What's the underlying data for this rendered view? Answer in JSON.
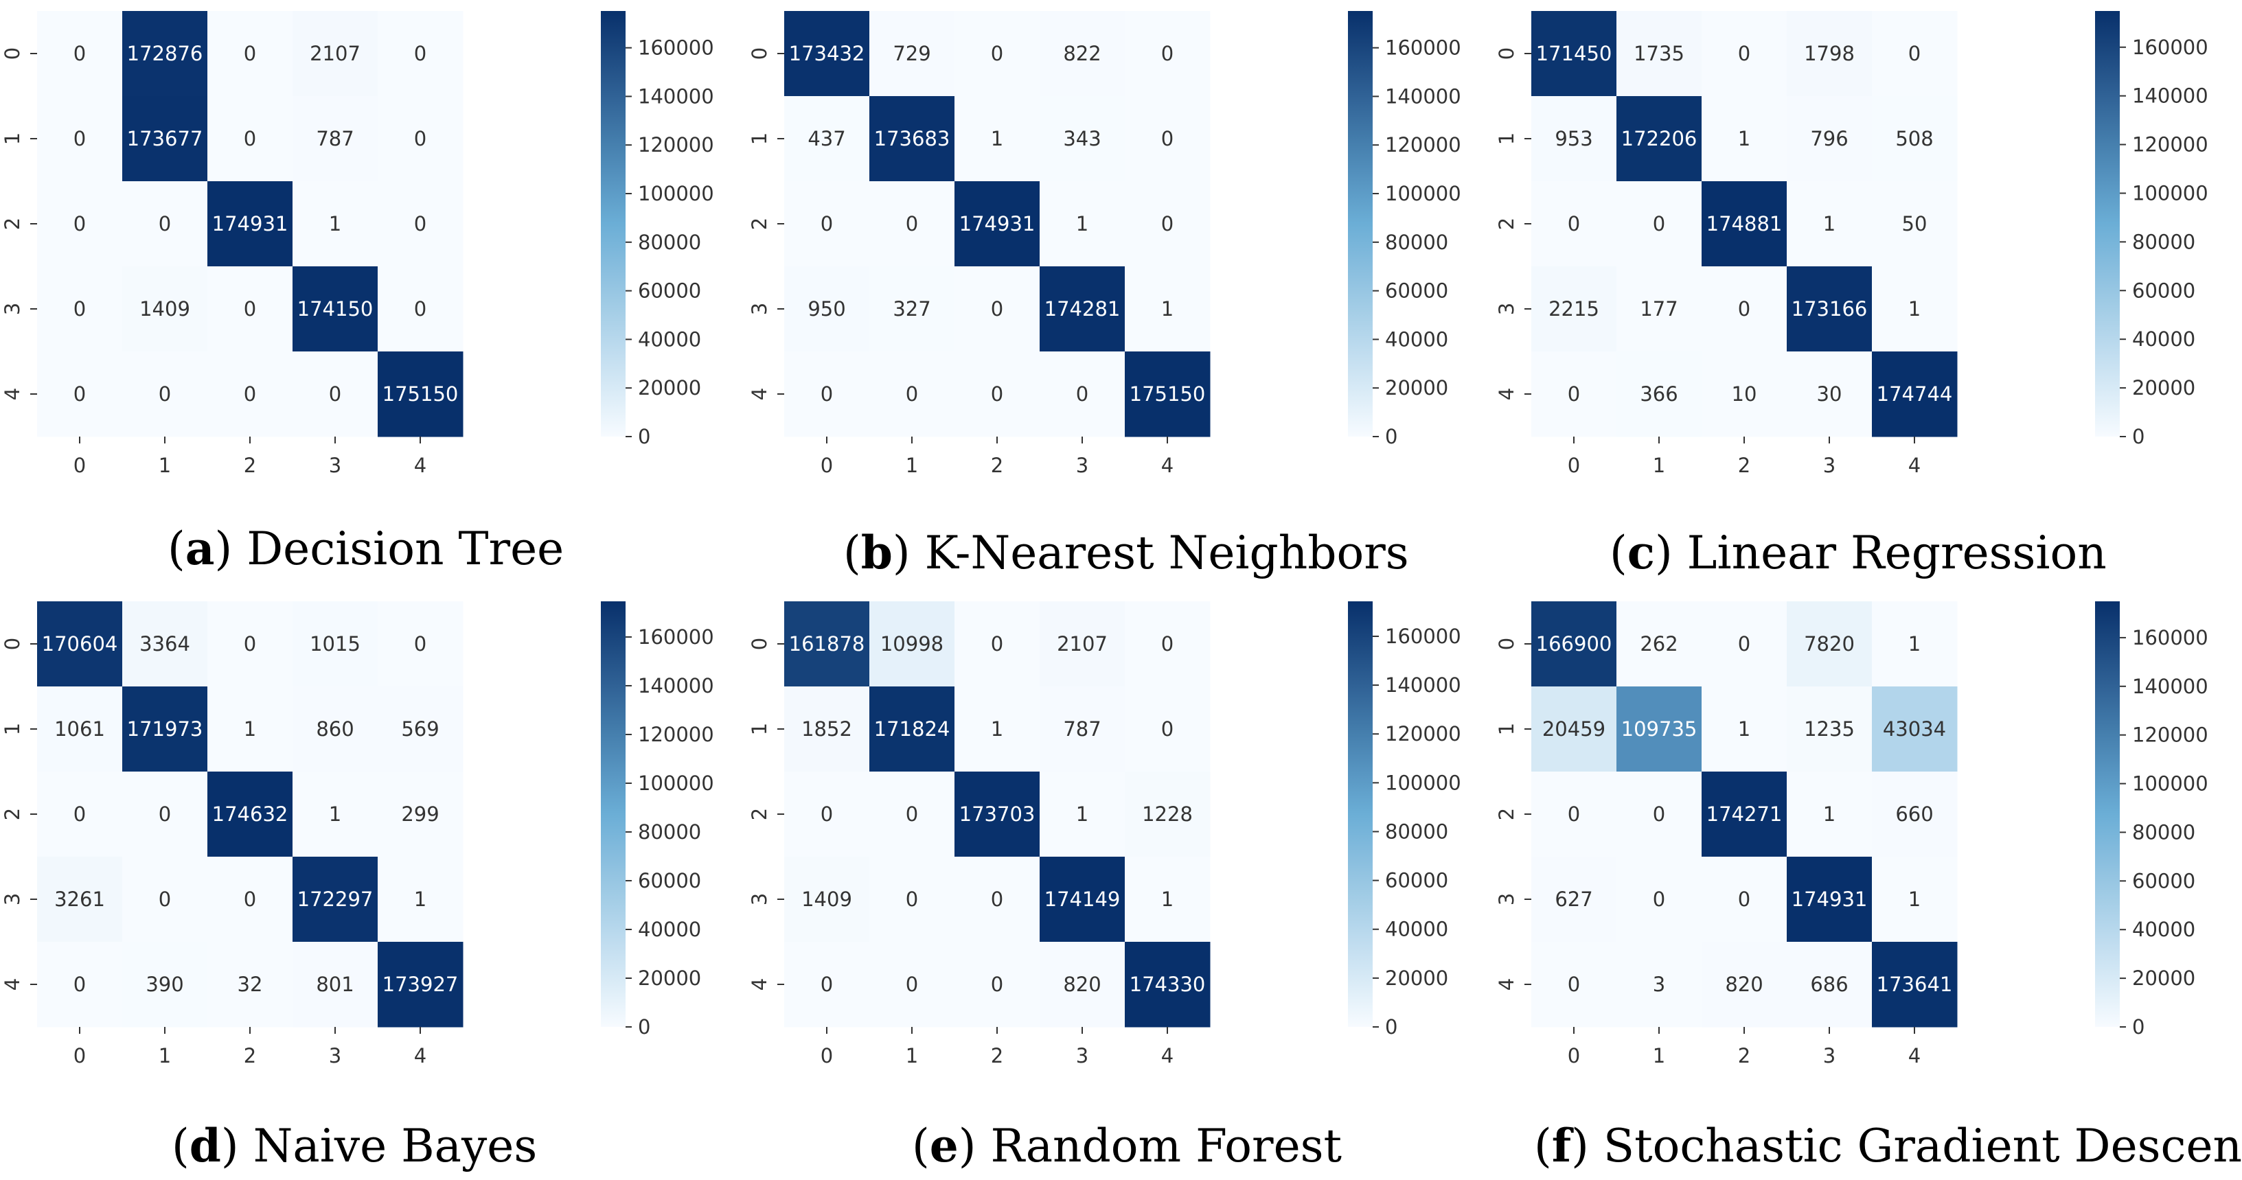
{
  "colormap": {
    "low": "#f7fbff",
    "mid": "#6baed6",
    "high": "#08306b",
    "light_text": "#ffffff",
    "dark_text": "#333333"
  },
  "chart_data": [
    {
      "type": "heatmap",
      "panel_letter": "a",
      "title": "Decision Tree",
      "xlabel": "",
      "ylabel": "",
      "x_labels": [
        "0",
        "1",
        "2",
        "3",
        "4"
      ],
      "y_labels": [
        "0",
        "1",
        "2",
        "3",
        "4"
      ],
      "matrix": [
        [
          0,
          172876,
          0,
          2107,
          0
        ],
        [
          0,
          173677,
          0,
          787,
          0
        ],
        [
          0,
          0,
          174931,
          1,
          0
        ],
        [
          0,
          1409,
          0,
          174150,
          0
        ],
        [
          0,
          0,
          0,
          0,
          175150
        ]
      ],
      "colorbar_ticks": [
        0,
        20000,
        40000,
        60000,
        80000,
        100000,
        120000,
        140000,
        160000
      ],
      "vmin": 0,
      "vmax": 175150
    },
    {
      "type": "heatmap",
      "panel_letter": "b",
      "title": "K-Nearest Neighbors",
      "xlabel": "",
      "ylabel": "",
      "x_labels": [
        "0",
        "1",
        "2",
        "3",
        "4"
      ],
      "y_labels": [
        "0",
        "1",
        "2",
        "3",
        "4"
      ],
      "matrix": [
        [
          173432,
          729,
          0,
          822,
          0
        ],
        [
          437,
          173683,
          1,
          343,
          0
        ],
        [
          0,
          0,
          174931,
          1,
          0
        ],
        [
          950,
          327,
          0,
          174281,
          1
        ],
        [
          0,
          0,
          0,
          0,
          175150
        ]
      ],
      "colorbar_ticks": [
        0,
        20000,
        40000,
        60000,
        80000,
        100000,
        120000,
        140000,
        160000
      ],
      "vmin": 0,
      "vmax": 175150
    },
    {
      "type": "heatmap",
      "panel_letter": "c",
      "title": "Linear Regression",
      "xlabel": "",
      "ylabel": "",
      "x_labels": [
        "0",
        "1",
        "2",
        "3",
        "4"
      ],
      "y_labels": [
        "0",
        "1",
        "2",
        "3",
        "4"
      ],
      "matrix": [
        [
          171450,
          1735,
          0,
          1798,
          0
        ],
        [
          953,
          172206,
          1,
          796,
          508
        ],
        [
          0,
          0,
          174881,
          1,
          50
        ],
        [
          2215,
          177,
          0,
          173166,
          1
        ],
        [
          0,
          366,
          10,
          30,
          174744
        ]
      ],
      "colorbar_ticks": [
        0,
        20000,
        40000,
        60000,
        80000,
        100000,
        120000,
        140000,
        160000
      ],
      "vmin": 0,
      "vmax": 174881
    },
    {
      "type": "heatmap",
      "panel_letter": "d",
      "title": "Naive Bayes",
      "xlabel": "",
      "ylabel": "",
      "x_labels": [
        "0",
        "1",
        "2",
        "3",
        "4"
      ],
      "y_labels": [
        "0",
        "1",
        "2",
        "3",
        "4"
      ],
      "matrix": [
        [
          170604,
          3364,
          0,
          1015,
          0
        ],
        [
          1061,
          171973,
          1,
          860,
          569
        ],
        [
          0,
          0,
          174632,
          1,
          299
        ],
        [
          3261,
          0,
          0,
          172297,
          1
        ],
        [
          0,
          390,
          32,
          801,
          173927
        ]
      ],
      "colorbar_ticks": [
        0,
        20000,
        40000,
        60000,
        80000,
        100000,
        120000,
        140000,
        160000
      ],
      "vmin": 0,
      "vmax": 174632
    },
    {
      "type": "heatmap",
      "panel_letter": "e",
      "title": "Random Forest",
      "xlabel": "",
      "ylabel": "",
      "x_labels": [
        "0",
        "1",
        "2",
        "3",
        "4"
      ],
      "y_labels": [
        "0",
        "1",
        "2",
        "3",
        "4"
      ],
      "matrix": [
        [
          161878,
          10998,
          0,
          2107,
          0
        ],
        [
          1852,
          171824,
          1,
          787,
          0
        ],
        [
          0,
          0,
          173703,
          1,
          1228
        ],
        [
          1409,
          0,
          0,
          174149,
          1
        ],
        [
          0,
          0,
          0,
          820,
          174330
        ]
      ],
      "colorbar_ticks": [
        0,
        20000,
        40000,
        60000,
        80000,
        100000,
        120000,
        140000,
        160000
      ],
      "vmin": 0,
      "vmax": 174330
    },
    {
      "type": "heatmap",
      "panel_letter": "f",
      "title": "Stochastic Gradient Descent",
      "xlabel": "",
      "ylabel": "",
      "x_labels": [
        "0",
        "1",
        "2",
        "3",
        "4"
      ],
      "y_labels": [
        "0",
        "1",
        "2",
        "3",
        "4"
      ],
      "matrix": [
        [
          166900,
          262,
          0,
          7820,
          1
        ],
        [
          20459,
          109735,
          1,
          1235,
          43034
        ],
        [
          0,
          0,
          174271,
          1,
          660
        ],
        [
          627,
          0,
          0,
          174931,
          1
        ],
        [
          0,
          3,
          820,
          686,
          173641
        ]
      ],
      "colorbar_ticks": [
        0,
        20000,
        40000,
        60000,
        80000,
        100000,
        120000,
        140000,
        160000
      ],
      "vmin": 0,
      "vmax": 174931
    }
  ]
}
